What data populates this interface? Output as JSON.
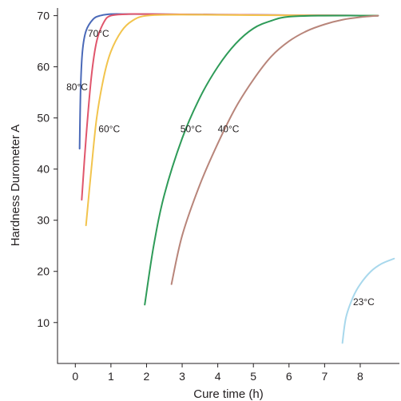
{
  "chart_data": {
    "type": "line",
    "title": "",
    "xlabel": "Cure time (h)",
    "ylabel": "Hardness  Durometer A",
    "xlim": [
      -0.5,
      9.1
    ],
    "ylim": [
      2,
      71.5
    ],
    "xticks": [
      "0",
      "1",
      "2",
      "3",
      "4",
      "5",
      "6",
      "7",
      "8"
    ],
    "yticks": [
      "10",
      "20",
      "30",
      "40",
      "50",
      "60",
      "70"
    ],
    "grid": false,
    "legend": "none",
    "series": [
      {
        "name": "80°C",
        "color": "#4a69b8",
        "x": [
          0.12,
          0.15,
          0.2,
          0.3,
          0.5,
          0.7,
          1.0,
          1.5,
          2.0,
          4.0,
          6.0,
          8.5
        ],
        "y": [
          44,
          56,
          63,
          67,
          69.3,
          70,
          70.3,
          70.3,
          70.3,
          70.2,
          70.1,
          70
        ]
      },
      {
        "name": "70°C",
        "color": "#e0566c",
        "x": [
          0.18,
          0.3,
          0.45,
          0.6,
          0.8,
          1.0,
          1.5,
          2.0,
          4.0,
          6.0,
          8.5
        ],
        "y": [
          34,
          46,
          58,
          65,
          68.7,
          70,
          70.3,
          70.3,
          70.2,
          70.1,
          70
        ]
      },
      {
        "name": "60°C",
        "color": "#f2c44d",
        "x": [
          0.3,
          0.45,
          0.6,
          0.8,
          1.0,
          1.3,
          1.6,
          2.0,
          3.0,
          5.0,
          8.5
        ],
        "y": [
          29,
          40,
          50,
          58,
          63,
          67,
          69,
          70,
          70.2,
          70.1,
          70
        ]
      },
      {
        "name": "50°C",
        "color": "#2e9b58",
        "x": [
          1.95,
          2.2,
          2.5,
          3.0,
          3.5,
          4.0,
          4.5,
          5.0,
          5.5,
          6.0,
          7.0,
          8.5
        ],
        "y": [
          13.5,
          25,
          35,
          46,
          54,
          60,
          64.5,
          67.5,
          69,
          69.8,
          70,
          70
        ]
      },
      {
        "name": "40°C",
        "color": "#b8857a",
        "x": [
          2.7,
          3.0,
          3.5,
          4.0,
          4.5,
          5.0,
          5.5,
          6.0,
          6.5,
          7.0,
          7.5,
          8.0,
          8.5
        ],
        "y": [
          17.5,
          27,
          37,
          45,
          52,
          57.5,
          62,
          65,
          67,
          68.3,
          69.2,
          69.7,
          70
        ]
      },
      {
        "name": "23°C",
        "color": "#a8d8ec",
        "x": [
          7.5,
          7.6,
          7.8,
          8.0,
          8.3,
          8.6,
          8.95
        ],
        "y": [
          6,
          11,
          15,
          17.5,
          20,
          21.5,
          22.5
        ]
      }
    ],
    "labels": [
      {
        "text": "80°C",
        "x": -0.25,
        "y": 56
      },
      {
        "text": "70°C",
        "x": 0.35,
        "y": 66.5
      },
      {
        "text": "60°C",
        "x": 0.65,
        "y": 47.8
      },
      {
        "text": "50°C",
        "x": 2.95,
        "y": 47.8
      },
      {
        "text": "40°C",
        "x": 4.0,
        "y": 47.8
      },
      {
        "text": "23°C",
        "x": 7.8,
        "y": 14
      }
    ]
  }
}
